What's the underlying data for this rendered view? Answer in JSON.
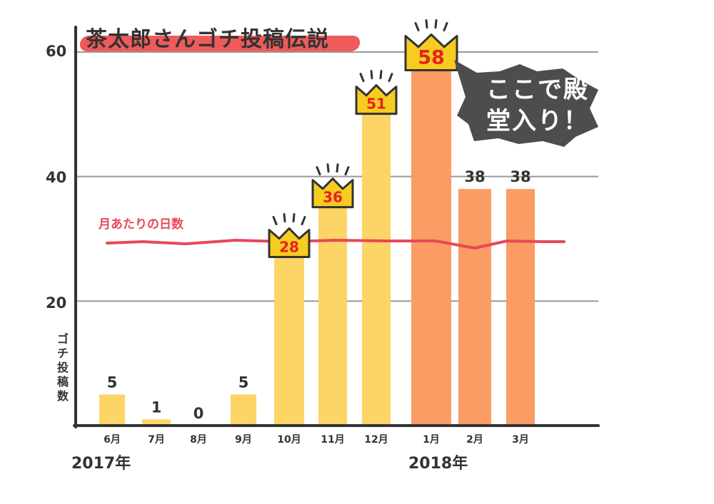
{
  "chart_data": {
    "type": "bar",
    "title": "茶太郎さんゴチ投稿伝説",
    "ylabel": "ゴチ投稿数",
    "ylim": [
      0,
      60
    ],
    "yticks": [
      20,
      40,
      60
    ],
    "categories": [
      "6月",
      "7月",
      "8月",
      "9月",
      "10月",
      "11月",
      "12月",
      "1月",
      "2月",
      "3月"
    ],
    "values": [
      5,
      1,
      0,
      5,
      28,
      36,
      51,
      58,
      38,
      38
    ],
    "year_labels": [
      "2017年",
      "2018年"
    ],
    "crowned_values": [
      28,
      36,
      51,
      58
    ],
    "reference_line": {
      "label": "月あたりの日数",
      "value": 30
    },
    "callout": "ここで殿堂入り！",
    "colors": {
      "bar_2017": "#fdd466",
      "bar_2018": "#fa9c64",
      "reference_line": "#e8485a",
      "crown": "#f5cc1f",
      "crown_value": "#e8201f",
      "axis": "#333333",
      "grid": "#999999",
      "callout_bg": "#4d4d4d"
    }
  }
}
